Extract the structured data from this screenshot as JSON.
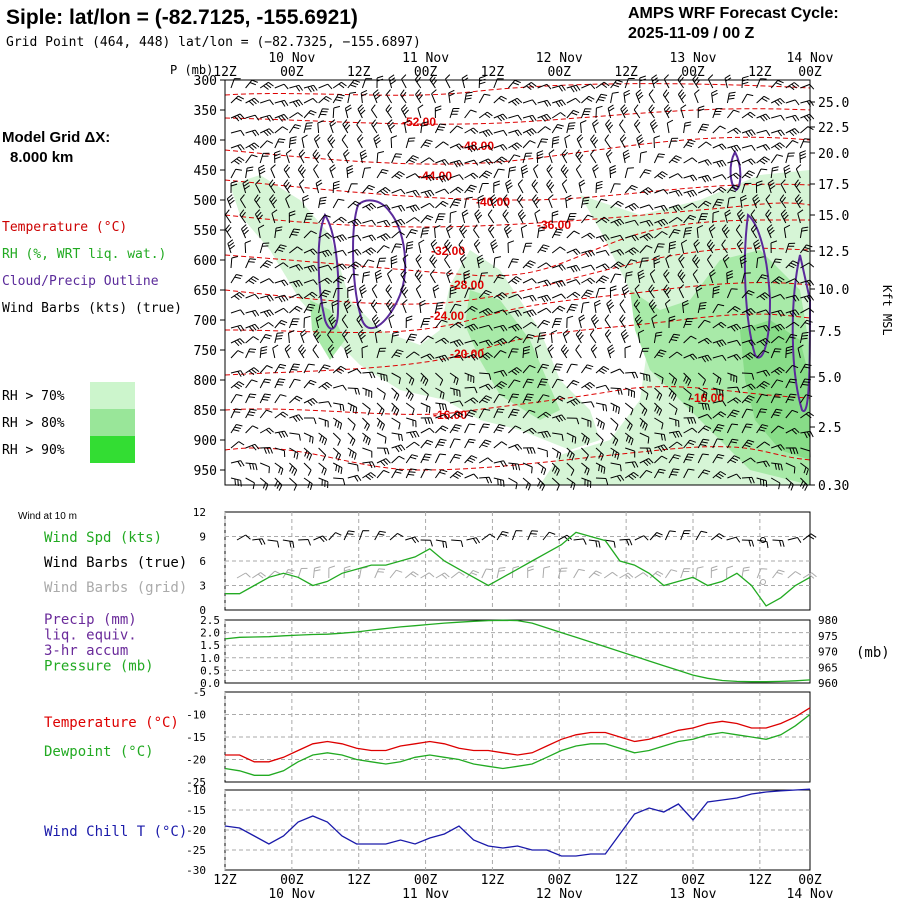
{
  "header": {
    "station_title": "Siple:  lat/lon = (-82.7125, -155.6921)",
    "grid_point": "Grid Point (464, 448) lat/lon = (−82.7325, −155.6897)",
    "forecast_title": "AMPS WRF Forecast Cycle:",
    "forecast_cycle": "2025-11-09 / 00  Z"
  },
  "left_panel": {
    "model_grid_label": "Model Grid ΔX:",
    "model_grid_value": "8.000 km",
    "legend": [
      {
        "text": "Temperature (°C)",
        "color": "#cc0000"
      },
      {
        "text": "RH (%, WRT liq. wat.)",
        "color": "#22aa22"
      },
      {
        "text": "Cloud/Precip Outline",
        "color": "#5a2a9a"
      },
      {
        "text": "Wind Barbs (kts) (true)",
        "color": "#000000"
      }
    ],
    "rh_legend": [
      {
        "text": "RH > 70%",
        "color": "#ccf5cc"
      },
      {
        "text": "RH > 80%",
        "color": "#99e699"
      },
      {
        "text": "RH > 90%",
        "color": "#33dd33"
      }
    ]
  },
  "time_axis": {
    "top_day_labels": [
      "10 Nov",
      "11 Nov",
      "12 Nov",
      "13 Nov",
      "14 Nov"
    ],
    "hour_labels": [
      "12Z",
      "00Z",
      "12Z",
      "00Z",
      "12Z",
      "00Z",
      "12Z",
      "00Z",
      "12Z",
      "00Z"
    ],
    "bottom_day_labels": [
      "10 Nov",
      "11 Nov",
      "12 Nov",
      "13 Nov",
      "14 Nov"
    ]
  },
  "chart_data": [
    {
      "type": "cross-section",
      "title": "Upper-air time-height section",
      "ylabel_left": "P (mb)",
      "ylabel_right": "Kft MSL",
      "pressure_ticks": [
        "300",
        "350",
        "400",
        "450",
        "500",
        "550",
        "600",
        "650",
        "700",
        "750",
        "800",
        "850",
        "900",
        "950"
      ],
      "height_ticks": [
        "25.0",
        "22.5",
        "20.0",
        "17.5",
        "15.0",
        "12.5",
        "10.0",
        "7.5",
        "5.0",
        "2.5",
        "0.30"
      ],
      "isotherm_labels": [
        "-52.00",
        "-48.00",
        "-44.00",
        "-40.00",
        "-36.00",
        "-32.00",
        "-28.00",
        "-24.00",
        "-20.00",
        "-16.00",
        "-16.00"
      ]
    },
    {
      "type": "line",
      "panel_label": "Wind at 10 m",
      "series_labels": [
        {
          "text": "Wind Spd (kts)",
          "color": "#22aa22"
        },
        {
          "text": "Wind Barbs (true)",
          "color": "#000000"
        },
        {
          "text": "Wind Barbs (grid)",
          "color": "#aaaaaa"
        }
      ],
      "ylim": [
        0,
        12
      ],
      "y_ticks": [
        "12",
        "9",
        "6",
        "3",
        "0"
      ],
      "series": [
        {
          "name": "Wind Spd (kts)",
          "color": "#22aa22",
          "values": [
            2.0,
            2.0,
            3.0,
            4.0,
            4.5,
            4.0,
            3.0,
            3.5,
            4.5,
            5.0,
            5.5,
            5.5,
            6.0,
            6.5,
            7.5,
            6.0,
            5.0,
            4.0,
            3.0,
            4.0,
            5.0,
            6.0,
            7.0,
            8.0,
            9.5,
            9.0,
            8.5,
            6.0,
            5.5,
            4.5,
            3.0,
            3.5,
            4.0,
            3.0,
            3.5,
            4.5,
            3.0,
            0.5,
            1.5,
            3.0,
            4.0
          ]
        }
      ]
    },
    {
      "type": "line",
      "series_labels": [
        {
          "text": "Precip (mm)",
          "color": "#6a2a9a"
        },
        {
          "text": "liq. equiv.",
          "color": "#6a2a9a"
        },
        {
          "text": "3-hr accum",
          "color": "#6a2a9a"
        },
        {
          "text": "Pressure (mb)",
          "color": "#22aa22"
        }
      ],
      "y_ticks_left": [
        "2.5",
        "2.0",
        "1.5",
        "1.0",
        "0.5",
        "0.0"
      ],
      "y_ticks_right": [
        "980",
        "975",
        "970",
        "965",
        "960"
      ],
      "ylabel_right": "(mb)",
      "ylim_right": [
        960,
        980
      ],
      "series": [
        {
          "name": "Pressure (mb)",
          "color": "#22aa22",
          "values": [
            974.0,
            974.5,
            974.6,
            974.7,
            975.0,
            975.2,
            975.4,
            975.5,
            975.8,
            976.2,
            976.8,
            977.3,
            977.8,
            978.2,
            978.6,
            979.0,
            979.3,
            979.6,
            979.8,
            979.9,
            979.8,
            979.0,
            977.5,
            976.0,
            974.5,
            973.0,
            971.5,
            970.0,
            968.5,
            967.0,
            965.5,
            964.0,
            962.5,
            961.5,
            960.8,
            960.5,
            960.4,
            960.4,
            960.5,
            960.7,
            961.0
          ]
        }
      ]
    },
    {
      "type": "line",
      "series_labels": [
        {
          "text": "Temperature (°C)",
          "color": "#dd0000"
        },
        {
          "text": "Dewpoint (°C)",
          "color": "#22aa22"
        }
      ],
      "ylim": [
        -25,
        -5
      ],
      "y_ticks": [
        "-5",
        "-10",
        "-15",
        "-20",
        "-25"
      ],
      "series": [
        {
          "name": "Temperature",
          "color": "#dd0000",
          "values": [
            -19.0,
            -19.0,
            -20.5,
            -20.5,
            -19.5,
            -18.0,
            -16.5,
            -16.0,
            -16.5,
            -17.5,
            -18.0,
            -18.0,
            -17.0,
            -16.5,
            -16.0,
            -16.5,
            -17.5,
            -18.0,
            -18.0,
            -18.5,
            -19.0,
            -18.5,
            -17.0,
            -15.5,
            -14.5,
            -14.0,
            -14.0,
            -15.0,
            -16.0,
            -15.5,
            -14.5,
            -13.5,
            -13.0,
            -12.0,
            -11.5,
            -12.0,
            -13.0,
            -13.0,
            -12.0,
            -10.5,
            -8.5
          ]
        },
        {
          "name": "Dewpoint",
          "color": "#22aa22",
          "values": [
            -22.0,
            -22.5,
            -23.5,
            -23.5,
            -22.5,
            -20.5,
            -19.0,
            -18.5,
            -19.0,
            -20.0,
            -20.5,
            -21.0,
            -20.5,
            -19.5,
            -19.0,
            -19.5,
            -20.0,
            -21.0,
            -21.5,
            -22.0,
            -21.5,
            -21.0,
            -19.5,
            -18.0,
            -17.0,
            -16.5,
            -16.5,
            -17.5,
            -18.5,
            -18.0,
            -17.0,
            -16.0,
            -15.5,
            -14.5,
            -14.0,
            -14.5,
            -15.0,
            -15.5,
            -14.5,
            -12.5,
            -10.0
          ]
        }
      ]
    },
    {
      "type": "line",
      "series_labels": [
        {
          "text": "Wind Chill T (°C)",
          "color": "#1a1aaa"
        }
      ],
      "ylim": [
        -30,
        -10
      ],
      "y_ticks": [
        "-10",
        "-15",
        "-20",
        "-25",
        "-30"
      ],
      "series": [
        {
          "name": "Wind Chill",
          "color": "#1a1aaa",
          "values": [
            -19.0,
            -19.5,
            -21.5,
            -23.5,
            -21.5,
            -18.0,
            -16.5,
            -18.0,
            -21.5,
            -23.5,
            -23.5,
            -23.5,
            -22.5,
            -23.5,
            -22.0,
            -21.0,
            -19.0,
            -22.5,
            -24.0,
            -24.5,
            -24.0,
            -25.0,
            -25.0,
            -26.5,
            -26.5,
            -26.0,
            -26.0,
            -21.0,
            -16.0,
            -14.5,
            -15.5,
            -13.5,
            -17.5,
            -13.0,
            -12.5,
            -12.0,
            -11.0,
            -10.5,
            -10.2,
            -10.0,
            -9.8
          ]
        }
      ]
    }
  ]
}
